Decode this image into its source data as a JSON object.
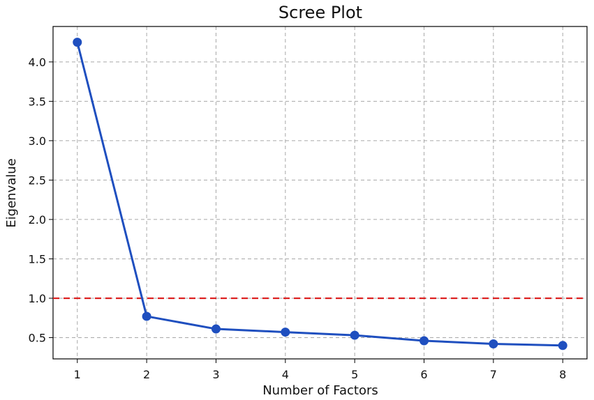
{
  "chart_data": {
    "type": "line",
    "title": "Scree Plot",
    "xlabel": "Number of Factors",
    "ylabel": "Eigenvalue",
    "x": [
      1,
      2,
      3,
      4,
      5,
      6,
      7,
      8
    ],
    "series": [
      {
        "values": [
          4.25,
          0.77,
          0.61,
          0.57,
          0.53,
          0.46,
          0.42,
          0.4
        ],
        "color": "#1f4fbf"
      }
    ],
    "reference_line": {
      "y": 1.0,
      "color": "#dd2222",
      "style": "dashed"
    },
    "xlim": [
      0.65,
      8.35
    ],
    "ylim": [
      0.23,
      4.45
    ],
    "xticks": [
      "1",
      "2",
      "3",
      "4",
      "5",
      "6",
      "7",
      "8"
    ],
    "xtick_values": [
      1,
      2,
      3,
      4,
      5,
      6,
      7,
      8
    ],
    "yticks": [
      "0.5",
      "1.0",
      "1.5",
      "2.0",
      "2.5",
      "3.0",
      "3.5",
      "4.0"
    ],
    "ytick_values": [
      0.5,
      1.0,
      1.5,
      2.0,
      2.5,
      3.0,
      3.5,
      4.0
    ],
    "grid": true
  }
}
